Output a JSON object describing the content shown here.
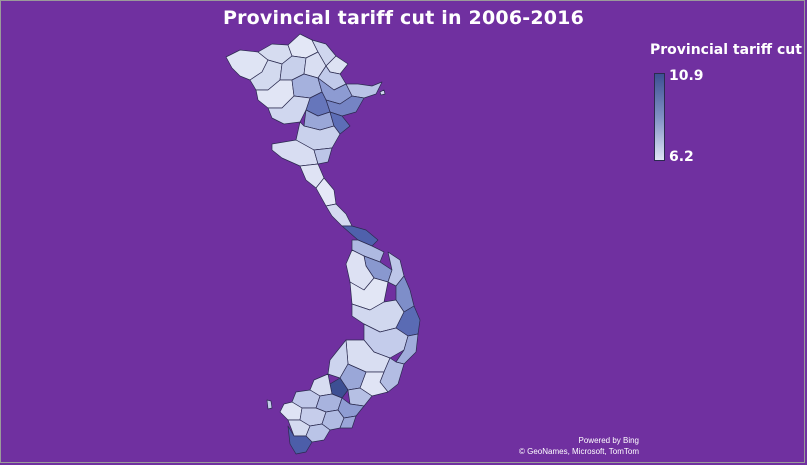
{
  "title": "Provincial tariff cut in 2006-2016",
  "legend": {
    "title": "Provincial tariff cut",
    "max_label": "10.9",
    "min_label": "6.2",
    "max_color": "#3d4f93",
    "min_color": "#dfe4f4"
  },
  "attribution": {
    "powered_by": "Powered by Bing",
    "credits": "© GeoNames, Microsoft, TomTom"
  },
  "colors": {
    "background": "#7030a0",
    "border": "#2b2b50"
  }
}
